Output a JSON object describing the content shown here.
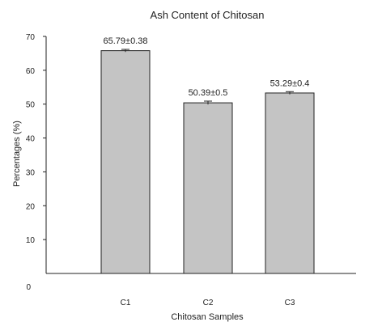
{
  "chart_data": {
    "type": "bar",
    "title": "Ash Content of Chitosan",
    "xlabel": "Chitosan Samples",
    "ylabel": "Percentages (%)",
    "categories": [
      "C1",
      "C2",
      "C3"
    ],
    "values": [
      65.79,
      50.39,
      53.29
    ],
    "errors": [
      0.38,
      0.5,
      0.4
    ],
    "data_labels": [
      "65.79±0.38",
      "50.39±0.5",
      "53.29±0.4"
    ],
    "yticks": [
      "0",
      "10",
      "20",
      "30",
      "40",
      "50",
      "60",
      "70"
    ],
    "ylim": [
      0,
      70
    ],
    "grid": false,
    "legend": false,
    "colors": {
      "bar": "#c4c4c4",
      "bar_edge": "#222222",
      "axis": "#222222"
    }
  }
}
